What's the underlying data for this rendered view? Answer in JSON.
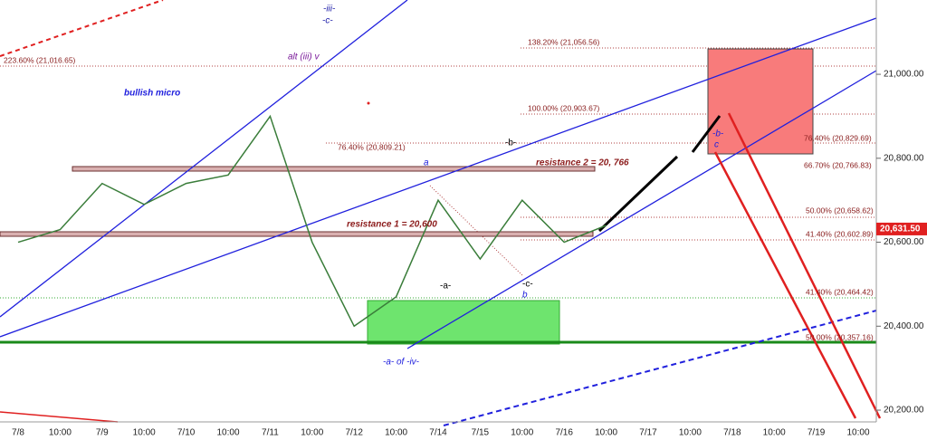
{
  "chart_data": {
    "type": "line",
    "categories": [
      "7/8",
      "10:00",
      "7/9",
      "10:00",
      "7/10",
      "10:00",
      "7/11",
      "10:00",
      "7/12",
      "10:00",
      "7/14",
      "7/15",
      "10:00",
      "7/16",
      "10:00",
      "7/17",
      "10:00",
      "7/18",
      "10:00",
      "7/19",
      "10:00"
    ],
    "series": [
      {
        "color": "#3a7d3a",
        "values": [
          20600,
          20630,
          20740,
          20690,
          20740,
          20760,
          20900,
          20600,
          20400,
          20470,
          20700,
          20560,
          20700,
          20600,
          20640,
          null,
          null,
          null,
          null,
          null,
          null
        ]
      }
    ],
    "ylim": [
      20172,
      21177
    ],
    "yticks": [
      {
        "value": 20200,
        "label": "20,200.00"
      },
      {
        "value": 20400,
        "label": "20,400.00"
      },
      {
        "value": 20600,
        "label": "20,600.00"
      },
      {
        "value": 20800,
        "label": "20,800.00"
      },
      {
        "value": 21000,
        "label": "21,000.00"
      }
    ],
    "last_price": {
      "value": 20631.5,
      "label": "20,631.50"
    },
    "annotations": [
      "bullish micro",
      "-iii-",
      "-c-",
      "alt (iii) v",
      "a",
      "resistance 2 = 20, 766",
      "resistance 1 = 20,600",
      "-b-",
      "-a-",
      "-c-",
      "b",
      "-b-",
      "c",
      "-a- of -iv-",
      "138.20% (21,056.56)",
      "223.60% (21,016.65)",
      "100.00% (20,903.67)",
      "76.40% (20,809.21)",
      "76.40% (20,829.69)",
      "66.70% (20,766.83)",
      "50.00% (20,658.62)",
      "41.40% (20,602.89)",
      "41.40% (20,464.42)",
      "50.00% (20,357.16)"
    ]
  }
}
